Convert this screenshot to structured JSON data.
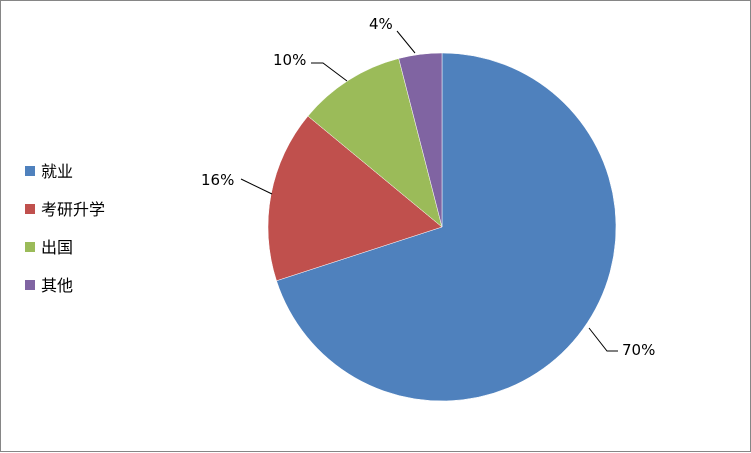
{
  "chart_data": {
    "type": "pie",
    "categories": [
      "就业",
      "考研升学",
      "出国",
      "其他"
    ],
    "values": [
      70,
      16,
      10,
      4
    ],
    "data_labels": [
      "70%",
      "16%",
      "10%",
      "4%"
    ],
    "colors": [
      "#4F81BD",
      "#C0504D",
      "#9BBB59",
      "#8064A2"
    ],
    "start_angle": "top, clockwise",
    "legend": "left"
  }
}
